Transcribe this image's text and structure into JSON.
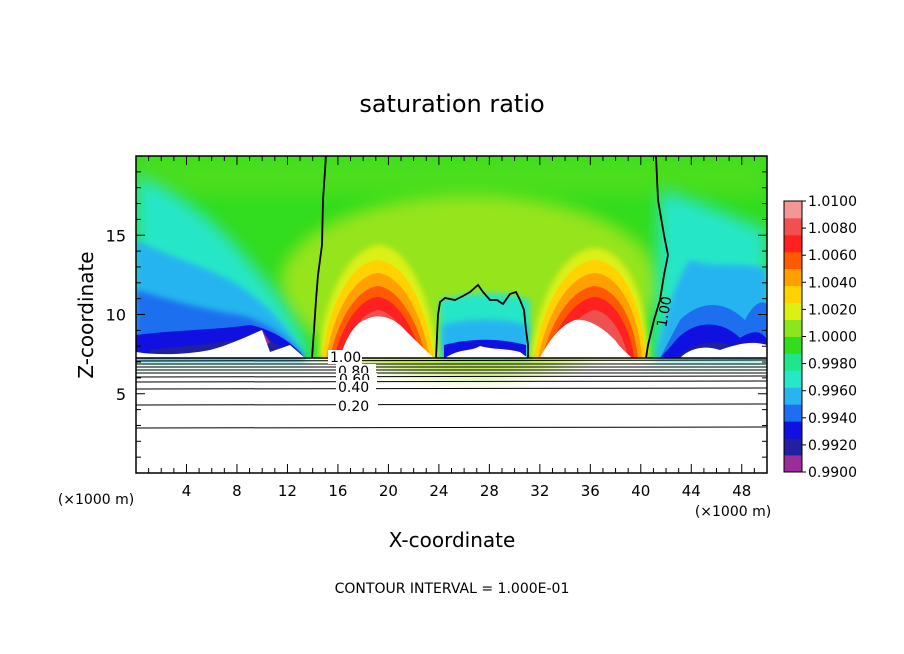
{
  "chart_data": {
    "type": "heatmap",
    "title": "saturation ratio",
    "xlabel": "X-coordinate",
    "ylabel": "Z-coordinate",
    "x_unit_label": "(×1000 m)",
    "y_unit_label": "(×1000 m)",
    "xlim": [
      0,
      50
    ],
    "ylim": [
      0,
      20
    ],
    "x_ticks": [
      4,
      8,
      12,
      16,
      20,
      24,
      28,
      32,
      36,
      40,
      44,
      48
    ],
    "y_ticks": [
      5,
      10,
      15
    ],
    "footer": "CONTOUR INTERVAL = 1.000E-01",
    "colorbar": {
      "levels": [
        "1.0100",
        "1.0080",
        "1.0060",
        "1.0040",
        "1.0020",
        "1.0000",
        "0.9980",
        "0.9960",
        "0.9940",
        "0.9920",
        "0.9900"
      ],
      "colors": [
        "#9b2d9b",
        "#2020a0",
        "#1010e0",
        "#1e6ff0",
        "#28b4f0",
        "#28e6c8",
        "#1ee68c",
        "#32dc1e",
        "#8ce61e",
        "#dcf014",
        "#ffd200",
        "#ffa000",
        "#ff5a00",
        "#ff2020",
        "#f05050",
        "#f49696"
      ]
    },
    "contour_labels": [
      "1.00",
      "1.00",
      "0.80",
      "0.60",
      "0.40",
      "0.20"
    ],
    "colors": {
      "background_field": "#32dc1e",
      "contour_line": "#000000"
    }
  }
}
